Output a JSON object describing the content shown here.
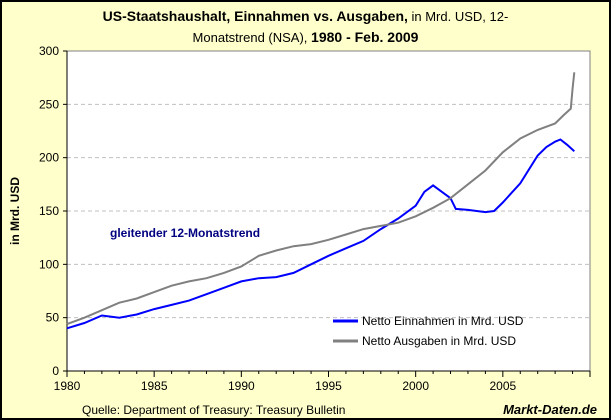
{
  "chart_data": {
    "type": "line",
    "title": {
      "bold_1": "US-Staatshaushalt, Einnahmen vs. Ausgaben,",
      "normal_1": " in Mrd. USD, 12-",
      "normal_2": "Monatstrend (NSA), ",
      "bold_2": "1980 - Feb. 2009"
    },
    "ylabel": "in Mrd. USD",
    "xlabel": "",
    "xlim": [
      1980,
      2010
    ],
    "ylim": [
      0,
      300
    ],
    "xticks": [
      "1980",
      "1985",
      "1990",
      "1995",
      "2000",
      "2005"
    ],
    "yticks": [
      "0",
      "50",
      "100",
      "150",
      "200",
      "250",
      "300"
    ],
    "grid": "horizontal dashed",
    "legend_position": "bottom-right",
    "annotation": "gleitender 12-Monatstrend",
    "series": [
      {
        "name": "Netto Einnahmen in Mrd. USD",
        "color": "#0000FF",
        "x": [
          1980,
          1981,
          1982,
          1983,
          1984,
          1985,
          1986,
          1987,
          1988,
          1989,
          1990,
          1991,
          1992,
          1993,
          1994,
          1995,
          1996,
          1997,
          1998,
          1999,
          2000,
          2000.5,
          2001,
          2001.5,
          2002,
          2002.3,
          2003,
          2004,
          2004.5,
          2005,
          2006,
          2007,
          2007.5,
          2008,
          2008.3,
          2008.7,
          2009.1
        ],
        "y": [
          40,
          45,
          52,
          50,
          53,
          58,
          62,
          66,
          72,
          78,
          84,
          87,
          88,
          92,
          100,
          108,
          115,
          122,
          133,
          143,
          155,
          168,
          174,
          168,
          162,
          152,
          151,
          149,
          150,
          158,
          176,
          202,
          210,
          215,
          217,
          212,
          206
        ]
      },
      {
        "name": "Netto Ausgaben in Mrd. USD",
        "color": "#808080",
        "x": [
          1980,
          1981,
          1982,
          1983,
          1984,
          1985,
          1986,
          1987,
          1988,
          1989,
          1990,
          1991,
          1992,
          1993,
          1994,
          1995,
          1996,
          1997,
          1998,
          1999,
          2000,
          2001,
          2002,
          2003,
          2004,
          2005,
          2006,
          2007,
          2008,
          2008.5,
          2008.9,
          2009.0,
          2009.1
        ],
        "y": [
          44,
          50,
          57,
          64,
          68,
          74,
          80,
          84,
          87,
          92,
          98,
          108,
          113,
          117,
          119,
          123,
          128,
          133,
          136,
          139,
          145,
          153,
          162,
          175,
          188,
          205,
          218,
          226,
          232,
          240,
          246,
          265,
          280
        ]
      }
    ]
  },
  "footer": {
    "source": "Quelle: Department of Treasury: Treasury Bulletin",
    "logo": "Markt-Daten.de"
  }
}
